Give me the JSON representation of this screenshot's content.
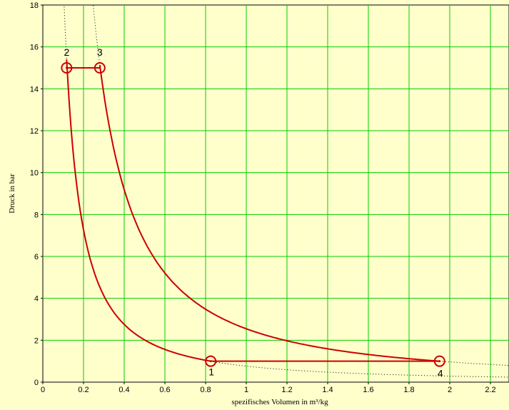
{
  "chart_data": {
    "type": "line",
    "title": "",
    "xlabel": "spezifisches Volumen in m³/kg",
    "ylabel": "Druck in bar",
    "xlim": [
      0,
      2.3
    ],
    "ylim": [
      0,
      18
    ],
    "grid": true,
    "x_ticks": [
      0,
      0.2,
      0.4,
      0.6,
      0.8,
      1,
      1.2,
      1.4,
      1.6,
      1.8,
      2,
      2.2
    ],
    "x_tick_labels": [
      "0",
      "0.2",
      "0.4",
      "0.6",
      "0.8",
      "1",
      "1.2",
      "1.4",
      "1.6",
      "1.8",
      "2",
      "2.2"
    ],
    "y_ticks": [
      0,
      2,
      4,
      6,
      8,
      10,
      12,
      14,
      16,
      18
    ],
    "y_tick_labels": [
      "0",
      "2",
      "4",
      "6",
      "8",
      "10",
      "12",
      "14",
      "16",
      "18"
    ],
    "points": [
      {
        "label": "1",
        "x": 0.825,
        "y": 1.0
      },
      {
        "label": "2",
        "x": 0.117,
        "y": 15.0
      },
      {
        "label": "3",
        "x": 0.28,
        "y": 15.0
      },
      {
        "label": "4",
        "x": 1.95,
        "y": 1.0
      }
    ],
    "process_exponent": 1.4,
    "colors": {
      "background": "#ffffcc",
      "grid": "#00cc00",
      "cycle": "#cc0000",
      "reference": "#000000"
    }
  }
}
